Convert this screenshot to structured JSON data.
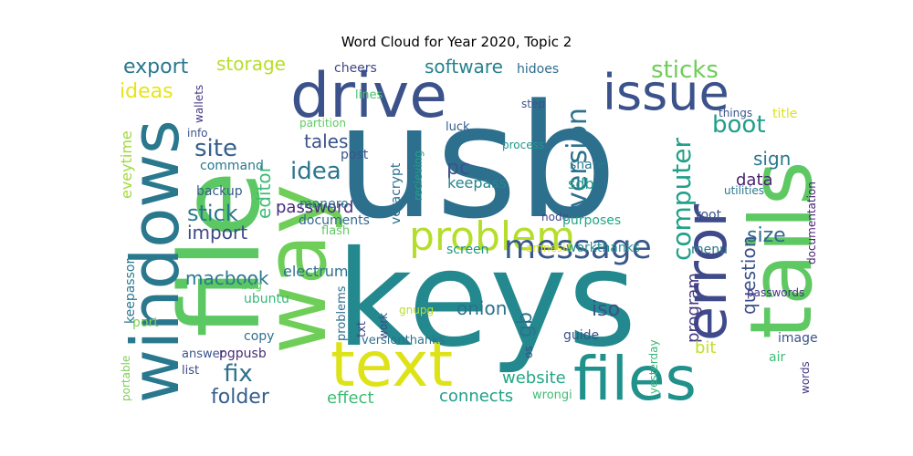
{
  "chart_data": {
    "type": "wordcloud",
    "title": "Word Cloud for Year 2020, Topic 2",
    "words": [
      {
        "text": "usb",
        "color": "#2d708e"
      },
      {
        "text": "keys",
        "color": "#23898e"
      },
      {
        "text": "file",
        "color": "#5cc863"
      },
      {
        "text": "tails",
        "color": "#5ec962"
      },
      {
        "text": "way",
        "color": "#6ece58"
      },
      {
        "text": "windows",
        "color": "#2a788e"
      },
      {
        "text": "drive",
        "color": "#3b528b"
      },
      {
        "text": "files",
        "color": "#21918c"
      },
      {
        "text": "text",
        "color": "#dde318"
      },
      {
        "text": "issue",
        "color": "#3b528b"
      },
      {
        "text": "error",
        "color": "#3e4a89"
      },
      {
        "text": "problem",
        "color": "#b5de2b"
      },
      {
        "text": "message",
        "color": "#38588c"
      },
      {
        "text": "version",
        "color": "#2c718e"
      },
      {
        "text": "computer",
        "color": "#1fa088"
      },
      {
        "text": "sticks",
        "color": "#6ece58"
      },
      {
        "text": "boot",
        "color": "#1f9e89"
      },
      {
        "text": "export",
        "color": "#2a788e"
      },
      {
        "text": "ideas",
        "color": "#e7e419"
      },
      {
        "text": "site",
        "color": "#355f8d"
      },
      {
        "text": "idea",
        "color": "#2a768e"
      },
      {
        "text": "editor",
        "color": "#3dbc74"
      },
      {
        "text": "tales",
        "color": "#3b528b"
      },
      {
        "text": "software",
        "color": "#26828e"
      },
      {
        "text": "storage",
        "color": "#b8de29"
      },
      {
        "text": "stick",
        "color": "#2a788e"
      },
      {
        "text": "import",
        "color": "#3e4989"
      },
      {
        "text": "password",
        "color": "#472d7b"
      },
      {
        "text": "macbook",
        "color": "#2a788e"
      },
      {
        "text": "fix",
        "color": "#2d708e"
      },
      {
        "text": "folder",
        "color": "#355f8d"
      },
      {
        "text": "effect",
        "color": "#3dbc74"
      },
      {
        "text": "connects",
        "color": "#1fa088"
      },
      {
        "text": "website",
        "color": "#22a785"
      },
      {
        "text": "onion",
        "color": "#2d708e"
      },
      {
        "text": "iso",
        "color": "#3b528b"
      },
      {
        "text": "gb",
        "color": "#2c728e"
      },
      {
        "text": "program",
        "color": "#443983"
      },
      {
        "text": "question",
        "color": "#3b528b"
      },
      {
        "text": "size",
        "color": "#31688e"
      },
      {
        "text": "sign",
        "color": "#2a788e"
      },
      {
        "text": "data",
        "color": "#481f70"
      },
      {
        "text": "pc",
        "color": "#3b528b"
      },
      {
        "text": "eveytime",
        "color": "#a0da39"
      },
      {
        "text": "bit",
        "color": "#c2df23"
      },
      {
        "text": "cheers",
        "color": "#404588"
      },
      {
        "text": "hidoes",
        "color": "#2f6c8e"
      },
      {
        "text": "lines",
        "color": "#4ac16d"
      },
      {
        "text": "step",
        "color": "#3b528b"
      },
      {
        "text": "luck",
        "color": "#365c8d"
      },
      {
        "text": "process",
        "color": "#1f968b"
      },
      {
        "text": "share",
        "color": "#2a788e"
      },
      {
        "text": "sdb",
        "color": "#1f9a8a"
      },
      {
        "text": "keepass",
        "color": "#25858e"
      },
      {
        "text": "veracrypt",
        "color": "#2c728e"
      },
      {
        "text": "recieving",
        "color": "#1fa088"
      },
      {
        "text": "post",
        "color": "#39558c"
      },
      {
        "text": "partition",
        "color": "#5ec962"
      },
      {
        "text": "documents",
        "color": "#31688e"
      },
      {
        "text": "monero",
        "color": "#2a788e"
      },
      {
        "text": "flash",
        "color": "#5ec962"
      },
      {
        "text": "node",
        "color": "#3e4989"
      },
      {
        "text": "purposes",
        "color": "#22a785"
      },
      {
        "text": "screen",
        "color": "#1f968b"
      },
      {
        "text": "amnesia",
        "color": "#dde318"
      },
      {
        "text": "workthanks",
        "color": "#21918c"
      },
      {
        "text": "root",
        "color": "#3b528b"
      },
      {
        "text": "menu",
        "color": "#2a788e"
      },
      {
        "text": "things",
        "color": "#39568c"
      },
      {
        "text": "title",
        "color": "#dde318"
      },
      {
        "text": "utilities",
        "color": "#2a788e"
      },
      {
        "text": "documentation",
        "color": "#482173"
      },
      {
        "text": "passwords",
        "color": "#453581"
      },
      {
        "text": "image",
        "color": "#3b528b"
      },
      {
        "text": "air",
        "color": "#3dbc74"
      },
      {
        "text": "words",
        "color": "#453781"
      },
      {
        "text": "yesterday",
        "color": "#35b779"
      },
      {
        "text": "guide",
        "color": "#3b528b"
      },
      {
        "text": "os",
        "color": "#3e4989"
      },
      {
        "text": "wrongi",
        "color": "#3dbc74"
      },
      {
        "text": "versionthanks",
        "color": "#2c728e"
      },
      {
        "text": "work",
        "color": "#3e4989"
      },
      {
        "text": "gnupg",
        "color": "#b8de29"
      },
      {
        "text": "problems",
        "color": "#2d708e"
      },
      {
        "text": "txt",
        "color": "#414487"
      },
      {
        "text": "electrum",
        "color": "#2c728e"
      },
      {
        "text": "ubuntu",
        "color": "#35b779"
      },
      {
        "text": "copy",
        "color": "#2d708e"
      },
      {
        "text": "bug",
        "color": "#5ec962"
      },
      {
        "text": "port",
        "color": "#7ad151"
      },
      {
        "text": "answer",
        "color": "#3b528b"
      },
      {
        "text": "pgpusb",
        "color": "#472d7b"
      },
      {
        "text": "list",
        "color": "#404688"
      },
      {
        "text": "portable",
        "color": "#7ad151"
      },
      {
        "text": "keepassor",
        "color": "#2a788e"
      },
      {
        "text": "info",
        "color": "#3b528b"
      },
      {
        "text": "command",
        "color": "#2a788e"
      },
      {
        "text": "backup",
        "color": "#365d8d"
      },
      {
        "text": "wallets",
        "color": "#453882"
      }
    ]
  }
}
